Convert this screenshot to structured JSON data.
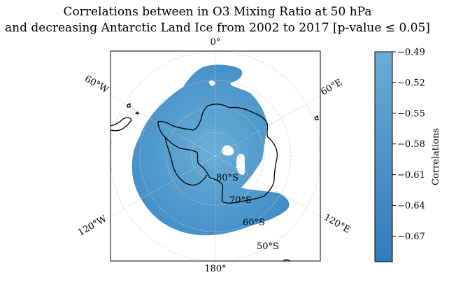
{
  "chart_data": {
    "type": "heatmap",
    "projection": "south-polar-stereographic",
    "title_line1": "Correlations between in O3 Mixing Ratio at 50 hPa",
    "title_line2": "and decreasing Antarctic Land Ice from 2002 to 2017 [p-value ≤ 0.05]",
    "meridian_labels": [
      "0°",
      "60°E",
      "120°E",
      "180°",
      "120°W",
      "60°W"
    ],
    "parallel_labels": [
      "80°S",
      "70°S",
      "60°S",
      "50°S"
    ],
    "grid": true,
    "colorbar": {
      "label": "Correlations",
      "ticks": [
        -0.49,
        -0.52,
        -0.55,
        -0.58,
        -0.61,
        -0.64,
        -0.67
      ],
      "tick_labels": [
        "−0.49",
        "−0.52",
        "−0.55",
        "−0.58",
        "−0.61",
        "−0.64",
        "−0.67"
      ],
      "range": [
        -0.695,
        -0.49
      ],
      "color_top": "#6aaed6",
      "color_bottom": "#2f7bba"
    }
  }
}
